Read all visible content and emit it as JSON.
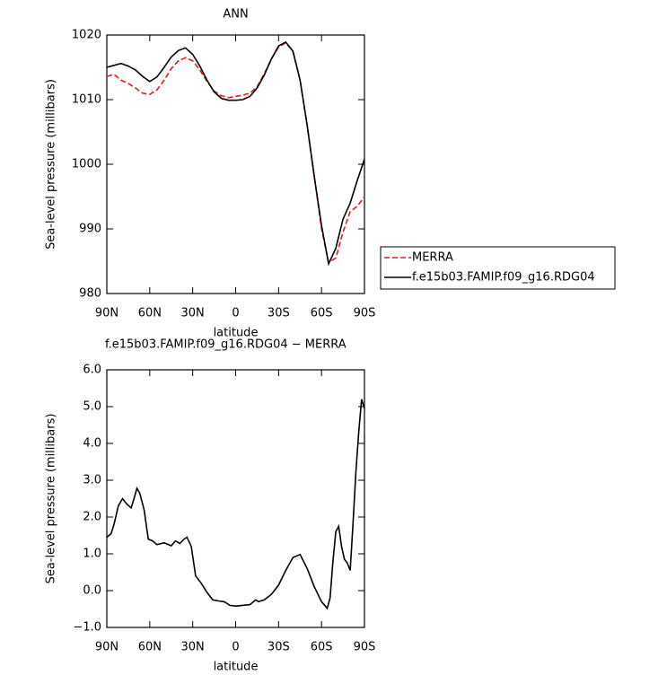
{
  "chart_data": [
    {
      "type": "line",
      "title": "ANN",
      "x_label": "latitude",
      "y_label": "Sea-level pressure (millibars)",
      "x": [
        90,
        85,
        80,
        75,
        70,
        65,
        60,
        55,
        50,
        45,
        40,
        35,
        30,
        25,
        20,
        15,
        10,
        5,
        0,
        -5,
        -10,
        -15,
        -20,
        -25,
        -30,
        -35,
        -40,
        -45,
        -50,
        -55,
        -60,
        -65,
        -70,
        -75,
        -80,
        -85,
        -90
      ],
      "series": [
        {
          "name": "MERRA",
          "color": "#e41a1c",
          "line_style": "dashed",
          "values": [
            1013.6,
            1013.9,
            1013.0,
            1012.5,
            1011.8,
            1011.0,
            1010.8,
            1011.5,
            1013.0,
            1014.8,
            1016.0,
            1016.5,
            1016.0,
            1014.6,
            1012.8,
            1011.3,
            1010.6,
            1010.3,
            1010.5,
            1010.7,
            1011.0,
            1012.0,
            1014.0,
            1016.3,
            1018.1,
            1018.8,
            1017.5,
            1013.0,
            1006.0,
            998.0,
            990.0,
            984.8,
            985.5,
            989.5,
            992.7,
            993.5,
            995.0
          ]
        },
        {
          "name": "f.e15b03.FAMIP.f09_g16.RDG04",
          "color": "#000000",
          "line_style": "solid",
          "values": [
            1015.0,
            1015.3,
            1015.6,
            1015.2,
            1014.6,
            1013.6,
            1012.8,
            1013.5,
            1015.0,
            1016.6,
            1017.6,
            1018.0,
            1017.0,
            1015.2,
            1013.0,
            1011.2,
            1010.2,
            1009.9,
            1009.9,
            1010.0,
            1010.5,
            1011.8,
            1013.8,
            1016.3,
            1018.3,
            1018.9,
            1017.5,
            1013.0,
            1006.0,
            998.0,
            990.5,
            984.6,
            987.0,
            991.5,
            994.0,
            997.5,
            1000.8
          ]
        }
      ],
      "xlim": [
        90,
        -90
      ],
      "xticks": [
        {
          "value": 90,
          "label": "90N"
        },
        {
          "value": 60,
          "label": "60N"
        },
        {
          "value": 30,
          "label": "30N"
        },
        0,
        {
          "value": -30,
          "label": "30S"
        },
        {
          "value": -60,
          "label": "60S"
        },
        {
          "value": -90,
          "label": "90S"
        }
      ],
      "ylim": [
        980,
        1020
      ],
      "yticks": [
        980,
        990,
        1000,
        1010,
        1020
      ],
      "legend": "right"
    },
    {
      "type": "line",
      "title": "f.e15b03.FAMIP.f09_g16.RDG04 − MERRA",
      "x_label": "latitude",
      "y_label": "Sea-level pressure (millibars)",
      "x": [
        90,
        87,
        85,
        82,
        79,
        76,
        73,
        71,
        69,
        67,
        64,
        61,
        58,
        55,
        50,
        45,
        42,
        39,
        36,
        34,
        31,
        28,
        24,
        20,
        16,
        12,
        8,
        4,
        0,
        -5,
        -10,
        -14,
        -16,
        -20,
        -25,
        -30,
        -35,
        -40,
        -45,
        -50,
        -55,
        -60,
        -64,
        -66,
        -68,
        -70,
        -72,
        -74,
        -76,
        -78,
        -80,
        -82,
        -84,
        -86,
        -88,
        -90
      ],
      "values": [
        1.45,
        1.55,
        1.8,
        2.3,
        2.5,
        2.35,
        2.25,
        2.5,
        2.78,
        2.65,
        2.2,
        1.4,
        1.35,
        1.25,
        1.3,
        1.22,
        1.35,
        1.28,
        1.4,
        1.45,
        1.2,
        0.4,
        0.2,
        -0.05,
        -0.25,
        -0.28,
        -0.3,
        -0.4,
        -0.42,
        -0.4,
        -0.38,
        -0.25,
        -0.3,
        -0.25,
        -0.1,
        0.15,
        0.55,
        0.9,
        0.98,
        0.6,
        0.1,
        -0.3,
        -0.48,
        -0.2,
        0.8,
        1.6,
        1.75,
        1.2,
        0.85,
        0.75,
        0.55,
        1.8,
        3.2,
        4.3,
        5.2,
        4.95
      ],
      "color": "#000000",
      "xlim": [
        90,
        -90
      ],
      "xticks": [
        {
          "value": 90,
          "label": "90N"
        },
        {
          "value": 60,
          "label": "60N"
        },
        {
          "value": 30,
          "label": "30N"
        },
        0,
        {
          "value": -30,
          "label": "30S"
        },
        {
          "value": -60,
          "label": "60S"
        },
        {
          "value": -90,
          "label": "90S"
        }
      ],
      "ylim": [
        -1,
        6
      ],
      "yticks": [
        {
          "value": -1,
          "label": "−1.0"
        },
        {
          "value": 0,
          "label": "0.0"
        },
        {
          "value": 1,
          "label": "1.0"
        },
        {
          "value": 2,
          "label": "2.0"
        },
        {
          "value": 3,
          "label": "3.0"
        },
        {
          "value": 4,
          "label": "4.0"
        },
        {
          "value": 5,
          "label": "5.0"
        },
        {
          "value": 6,
          "label": "6.0"
        }
      ]
    }
  ]
}
